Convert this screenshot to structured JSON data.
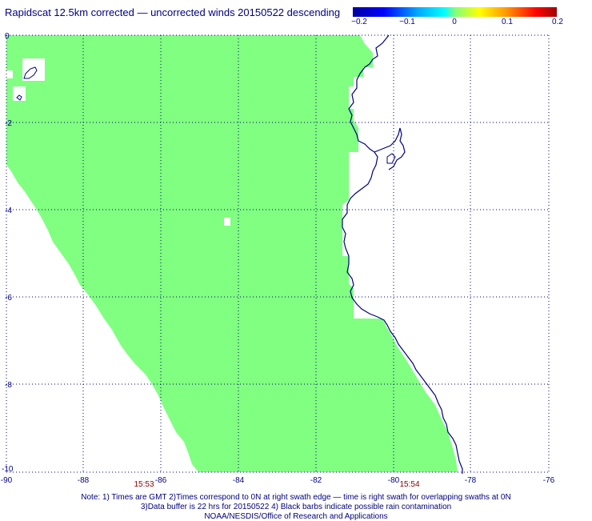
{
  "title": "Rapidscat 12.5km corrected — uncorrected winds 20150522 descending",
  "colorbar": {
    "labels": [
      "−0.2",
      "−0.1",
      "0",
      "0.1",
      "0.2"
    ],
    "values": [
      -0.2,
      -0.1,
      0,
      0.1,
      0.2
    ],
    "colors": [
      "#0000a0",
      "#00ffff",
      "#7fff7f",
      "#ffff00",
      "#a00000"
    ]
  },
  "map": {
    "lon_range": [
      -90,
      -76
    ],
    "lat_range": [
      -10,
      0
    ],
    "x_ticks": [
      "-90",
      "-88",
      "-86",
      "-84",
      "-82",
      "-80",
      "-78",
      "-76"
    ],
    "y_ticks": [
      "0",
      "-2",
      "-4",
      "-6",
      "-8",
      "-10"
    ],
    "swath_color": "#80ff80",
    "coast_color": "#000080",
    "grid": true,
    "times": [
      {
        "label": "15:53",
        "lon": -87.1
      },
      {
        "label": "15:54",
        "lon": -79.3
      }
    ]
  },
  "notes": [
    "Note: 1) Times are GMT 2)Times correspond to 0N at right swath edge — time is right swath for overlapping swaths at 0N",
    "3)Data buffer is 22 hrs for 20150522 4) Black barbs indicate possible rain contamination",
    "NOAA/NESDIS/Office of Research and Applications"
  ]
}
